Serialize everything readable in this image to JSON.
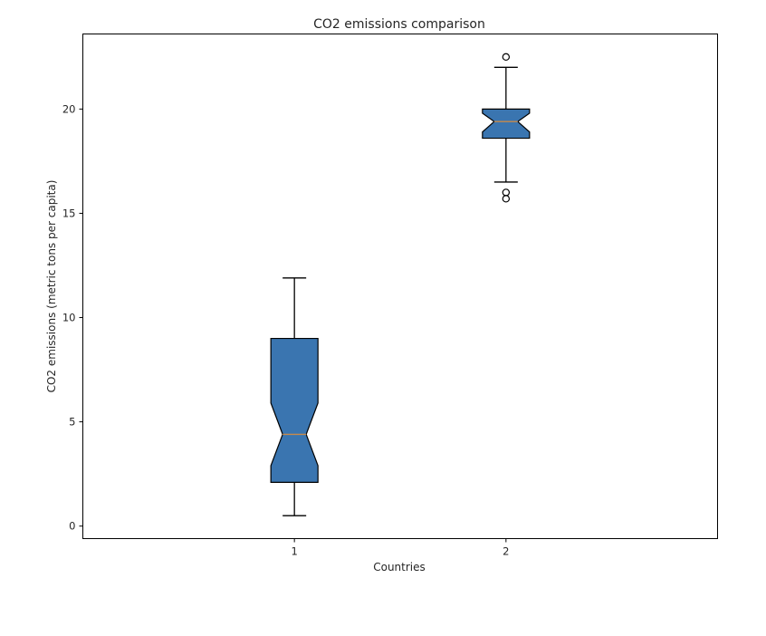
{
  "chart_data": {
    "type": "boxplot",
    "title": "CO2 emissions comparison",
    "xlabel": "Countries",
    "ylabel": "CO2 emissions (metric tons per capita)",
    "categories": [
      "1",
      "2"
    ],
    "ylim": [
      -0.6,
      23.6
    ],
    "yticks": [
      0,
      5,
      10,
      15,
      20
    ],
    "notched": true,
    "grid": false,
    "colors": {
      "box_fill": "#3a75b0",
      "box_edge": "#000000",
      "median": "#c98a4a",
      "whisker": "#000000"
    },
    "boxes": [
      {
        "label": "1",
        "whisker_low": 0.5,
        "q1": 2.1,
        "median": 4.4,
        "q3": 9.0,
        "whisker_high": 11.9,
        "notch_low": 2.9,
        "notch_high": 5.9,
        "outliers": []
      },
      {
        "label": "2",
        "whisker_low": 16.5,
        "q1": 18.6,
        "median": 19.4,
        "q3": 20.0,
        "whisker_high": 22.0,
        "notch_low": 18.9,
        "notch_high": 19.8,
        "outliers": [
          22.5,
          16.0,
          15.7
        ]
      }
    ]
  }
}
